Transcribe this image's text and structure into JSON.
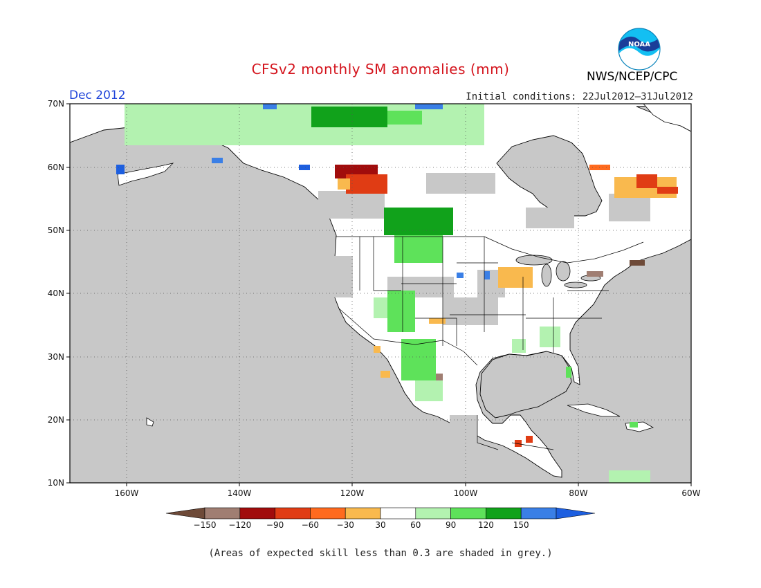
{
  "header": {
    "title": "CFSv2 monthly SM anomalies (mm)",
    "month": "Dec 2012",
    "initial_conditions": "Initial conditions: 22Jul2012–31Jul2012",
    "agency": "NWS/NCEP/CPC",
    "logo_text": "NOAA"
  },
  "map": {
    "lat_ticks": [
      "70N",
      "60N",
      "50N",
      "40N",
      "30N",
      "20N",
      "10N"
    ],
    "lon_ticks": [
      "160W",
      "140W",
      "120W",
      "100W",
      "80W",
      "60W"
    ],
    "lat_range": [
      10,
      70
    ],
    "lon_range": [
      -170,
      -60
    ],
    "land_color": "#ffffff",
    "low_skill_color": "#c8c8c8",
    "ocean_color": "#c8c8c8",
    "outline_color": "#000000",
    "anomaly_regions": [
      {
        "name": "northern-canada-wet",
        "class": "30 to 60",
        "lat": 68,
        "lon": -115
      },
      {
        "name": "arctic-islands-wet",
        "class": "60 to 90",
        "lat": 69,
        "lon": -110
      },
      {
        "name": "alberta-dry",
        "class": "-90 to -120",
        "lat": 59,
        "lon": -118
      },
      {
        "name": "saskatchewan-wet",
        "class": "90 to 120",
        "lat": 51,
        "lon": -105
      },
      {
        "name": "labrador-dry",
        "class": "-60 to -90",
        "lat": 57,
        "lon": -67
      },
      {
        "name": "midwest-dry",
        "class": "-30 to -60",
        "lat": 42,
        "lon": -92
      },
      {
        "name": "southwest-wet",
        "class": "60 to 90",
        "lat": 34,
        "lon": -112
      },
      {
        "name": "mexico-wet",
        "class": "60 to 90",
        "lat": 27,
        "lon": -107
      }
    ]
  },
  "colorbar": {
    "labels": [
      "−150",
      "−120",
      "−90",
      "−60",
      "−30",
      "30",
      "60",
      "90",
      "120",
      "150"
    ],
    "colors": [
      "#6e4a38",
      "#a07e72",
      "#a10c0c",
      "#e03c14",
      "#ff6a1e",
      "#f9b94e",
      "#ffffff",
      "#b3f2b0",
      "#5ee25a",
      "#11a21b",
      "#3a7fe6",
      "#1d5fe0"
    ]
  },
  "footnote": "(Areas of expected skill less than 0.3 are shaded in grey.)"
}
